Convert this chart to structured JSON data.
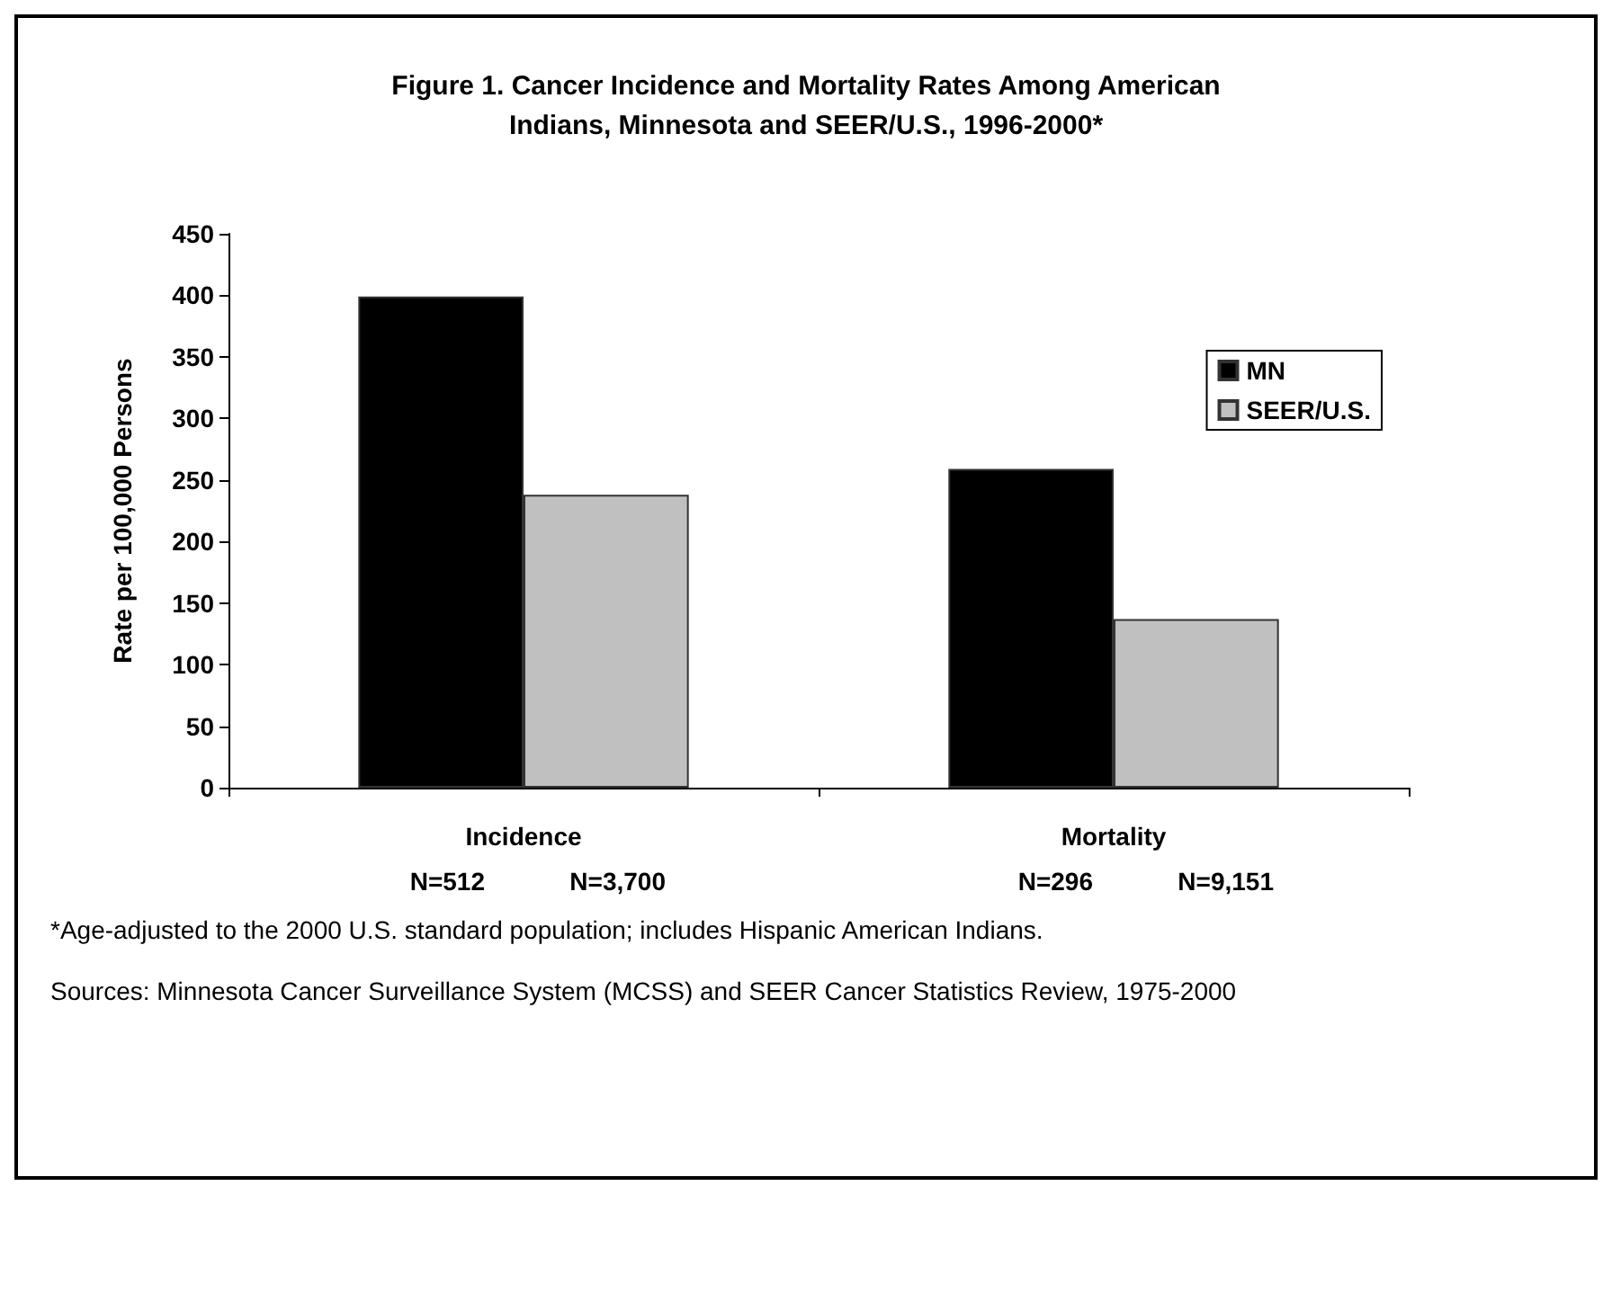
{
  "chart_data": {
    "type": "bar",
    "title": "Figure 1. Cancer Incidence and Mortality Rates Among American\nIndians, Minnesota and SEER/U.S., 1996-2000*",
    "ylabel": "Rate per 100,000 Persons",
    "categories": [
      "Incidence",
      "Mortality"
    ],
    "series": [
      {
        "name": "MN",
        "color": "#000000",
        "values": [
          399,
          259
        ]
      },
      {
        "name": "SEER/U.S.",
        "color": "#c0c0c0",
        "values": [
          238,
          137
        ]
      }
    ],
    "ylim": [
      0,
      450
    ],
    "yticks": [
      0,
      50,
      100,
      150,
      200,
      250,
      300,
      350,
      400,
      450
    ],
    "grid": false,
    "legend": "top right",
    "annotations": [
      "N=512",
      "N=3,700",
      "N=296",
      "N=9,151",
      "*Age-adjusted to the 2000 U.S. standard population; includes Hispanic American Indians.",
      "Sources: Minnesota Cancer Surveillance System (MCSS) and SEER Cancer Statistics Review, 1975-2000"
    ]
  }
}
